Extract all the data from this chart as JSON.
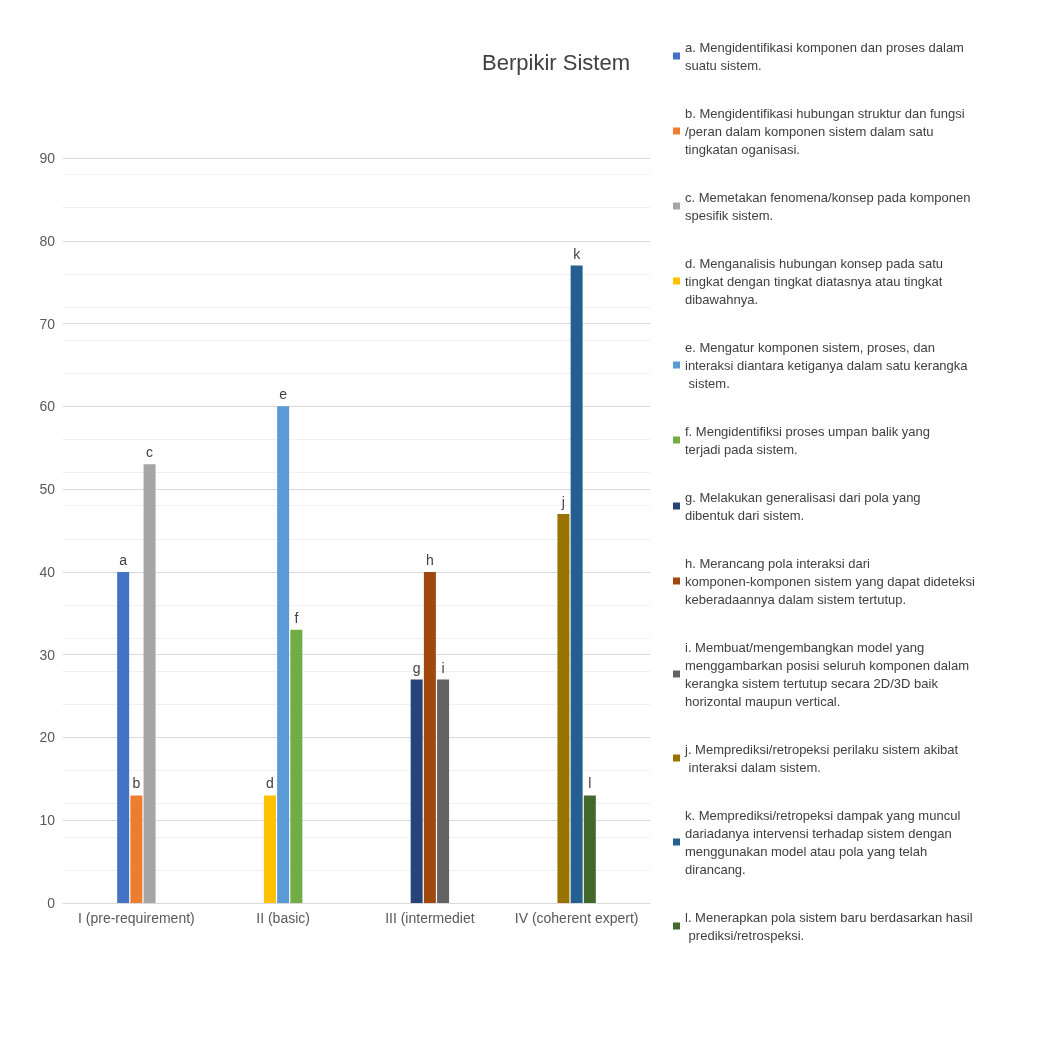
{
  "chart_data": {
    "type": "bar",
    "title": "Berpikir Sistem",
    "categories": [
      "I (pre-requirement)",
      "II (basic)",
      "III (intermediet",
      "IV (coherent expert)"
    ],
    "series": [
      {
        "name": "a. Mengidentifikasi komponen dan proses dalam suatu sistem.",
        "color": "#4472c4",
        "values": [
          40,
          null,
          null,
          null
        ],
        "value_labels": [
          "a",
          null,
          null,
          null
        ]
      },
      {
        "name": "b. Mengidentifikasi hubungan struktur dan fungsi/peran dalam komponen sistem dalam satu tingkatan oganisasi.",
        "color": "#ed7d31",
        "values": [
          13,
          null,
          null,
          null
        ],
        "value_labels": [
          "b",
          null,
          null,
          null
        ]
      },
      {
        "name": "c. Memetakan fenomena/konsep pada komponen spesifik sistem.",
        "color": "#a5a5a5",
        "values": [
          53,
          null,
          null,
          null
        ],
        "value_labels": [
          "c",
          null,
          null,
          null
        ]
      },
      {
        "name": "d. Menganalisis hubungan konsep pada satu tingkat dengan tingkat diatasnya atau tingkat dibawahnya.",
        "color": "#ffc000",
        "values": [
          null,
          13,
          null,
          null
        ],
        "value_labels": [
          null,
          "d",
          null,
          null
        ]
      },
      {
        "name": "e. Mengatur komponen sistem, proses, dan interaksi diantara ketiganya dalam satu kerangka sistem.",
        "color": "#5b9bd5",
        "values": [
          null,
          60,
          null,
          null
        ],
        "value_labels": [
          null,
          "e",
          null,
          null
        ]
      },
      {
        "name": "f. Mengidentifiksi proses umpan balik yang terjadi pada sistem.",
        "color": "#70ad47",
        "values": [
          null,
          33,
          null,
          null
        ],
        "value_labels": [
          null,
          "f",
          null,
          null
        ]
      },
      {
        "name": "g. Melakukan generalisasi dari pola yang dibentuk dari sistem.",
        "color": "#264478",
        "values": [
          null,
          null,
          27,
          null
        ],
        "value_labels": [
          null,
          null,
          "g",
          null
        ]
      },
      {
        "name": "h. Merancang pola interaksi dari komponen-komponen sistem yang dapat dideteksi keberadaannya dalam sistem tertutup.",
        "color": "#9e480e",
        "values": [
          null,
          null,
          40,
          null
        ],
        "value_labels": [
          null,
          null,
          "h",
          null
        ]
      },
      {
        "name": "i. Membuat/mengembangkan model yang menggambarkan posisi seluruh komponen dalam kerangka sistem tertutup secara 2D/3D baik horizontal maupun vertical.",
        "color": "#636363",
        "values": [
          null,
          null,
          27,
          null
        ],
        "value_labels": [
          null,
          null,
          "i",
          null
        ]
      },
      {
        "name": "j. Memprediksi/retropeksi perilaku sistem akibat interaksi dalam sistem.",
        "color": "#997300",
        "values": [
          null,
          null,
          null,
          47
        ],
        "value_labels": [
          null,
          null,
          null,
          "j"
        ]
      },
      {
        "name": "k. Memprediksi/retropeksi dampak yang muncul dariadanya intervensi terhadap sistem dengan menggunakan model atau pola yang telah dirancang.",
        "color": "#255e91",
        "values": [
          null,
          null,
          null,
          77
        ],
        "value_labels": [
          null,
          null,
          null,
          "k"
        ]
      },
      {
        "name": "l. Menerapkan pola sistem baru berdasarkan hasil prediksi/retrospeksi.",
        "color": "#43682b",
        "values": [
          null,
          null,
          null,
          13
        ],
        "value_labels": [
          null,
          null,
          null,
          "l"
        ]
      }
    ],
    "ylim": [
      0,
      90
    ],
    "yticks": [
      0,
      10,
      20,
      30,
      40,
      50,
      60,
      70,
      80,
      90
    ],
    "grid": "y",
    "legend": "right"
  }
}
